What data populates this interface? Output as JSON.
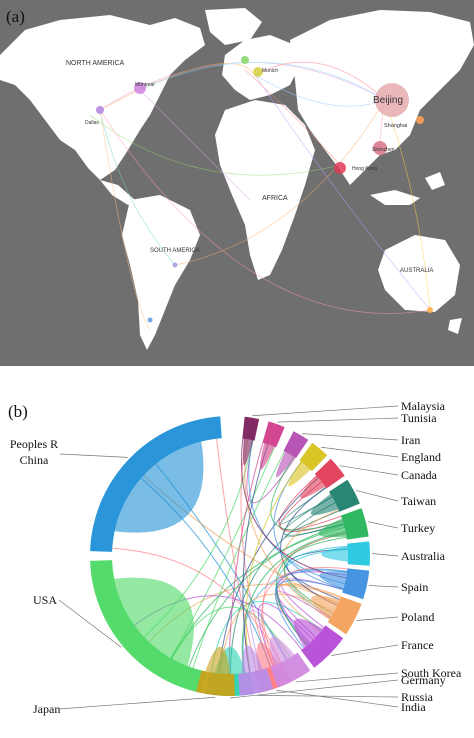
{
  "panel_a": {
    "label": "(a)",
    "regions": [
      "NORTH AMERICA",
      "SOUTH AMERICA",
      "AFRICA",
      "AUSTRALIA"
    ],
    "cities": [
      {
        "name": "Beijing",
        "major": true
      },
      {
        "name": "Shanghai"
      },
      {
        "name": "Shenzhen"
      },
      {
        "name": "Montreal"
      },
      {
        "name": "Dallas"
      },
      {
        "name": "Munich"
      },
      {
        "name": "Hong Kong"
      }
    ]
  },
  "panel_b": {
    "label": "(b)",
    "countries": [
      {
        "name": "Peoples R China",
        "color": "#1f8fd6"
      },
      {
        "name": "USA",
        "color": "#4cd964"
      },
      {
        "name": "Germany",
        "color": "#2ad3b0"
      },
      {
        "name": "India",
        "color": "#ff7b85"
      },
      {
        "name": "Japan",
        "color": "#c8a21a"
      },
      {
        "name": "Russia",
        "color": "#b98ce8"
      },
      {
        "name": "South Korea",
        "color": "#d18ae0"
      },
      {
        "name": "France",
        "color": "#b54ad6"
      },
      {
        "name": "Poland",
        "color": "#f3a05a"
      },
      {
        "name": "Spain",
        "color": "#3d8ee0"
      },
      {
        "name": "Australia",
        "color": "#25c6e0"
      },
      {
        "name": "Turkey",
        "color": "#26b45a"
      },
      {
        "name": "Taiwan",
        "color": "#1d7f6e"
      },
      {
        "name": "Canada",
        "color": "#e03b57"
      },
      {
        "name": "England",
        "color": "#d8c21a"
      },
      {
        "name": "Iran",
        "color": "#b44bb0"
      },
      {
        "name": "Tunisia",
        "color": "#d03d8a"
      },
      {
        "name": "Malaysia",
        "color": "#7a1f5c"
      }
    ],
    "extra_colors": [
      "#2a4a8a",
      "#3aa0e0"
    ]
  }
}
